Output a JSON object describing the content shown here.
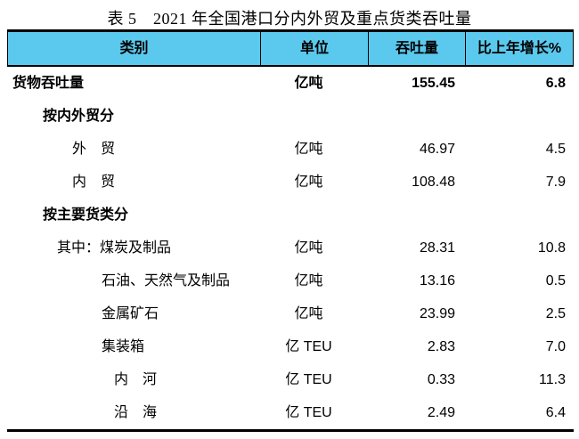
{
  "title": "表 5　2021 年全国港口分内外贸及重点货类吞吐量",
  "table": {
    "header_bg": "#5BC9EE",
    "border_color": "#000000",
    "columns": [
      "类别",
      "单位",
      "吞吐量",
      "比上年增长%"
    ],
    "rows": [
      {
        "label": "货物吞吐量",
        "indent": 0,
        "bold": true,
        "unit": "亿吨",
        "value": "155.45",
        "pct": "6.8"
      },
      {
        "label": "按内外贸分",
        "indent": 1,
        "bold": true,
        "unit": "",
        "value": "",
        "pct": ""
      },
      {
        "label": "外　贸",
        "indent": 2,
        "bold": false,
        "unit": "亿吨",
        "value": "46.97",
        "pct": "4.5"
      },
      {
        "label": "内　贸",
        "indent": 2,
        "bold": false,
        "unit": "亿吨",
        "value": "108.48",
        "pct": "7.9"
      },
      {
        "label": "按主要货类分",
        "indent": 1,
        "bold": true,
        "unit": "",
        "value": "",
        "pct": ""
      },
      {
        "label": "其中：煤炭及制品",
        "indent": 3,
        "bold": false,
        "unit": "亿吨",
        "value": "28.31",
        "pct": "10.8"
      },
      {
        "label": "石油、天然气及制品",
        "indent": 4,
        "bold": false,
        "unit": "亿吨",
        "value": "13.16",
        "pct": "0.5"
      },
      {
        "label": "金属矿石",
        "indent": 4,
        "bold": false,
        "unit": "亿吨",
        "value": "23.99",
        "pct": "2.5"
      },
      {
        "label": "集装箱",
        "indent": 4,
        "bold": false,
        "unit": "亿 TEU",
        "value": "2.83",
        "pct": "7.0"
      },
      {
        "label": "内　河",
        "indent": 5,
        "bold": false,
        "unit": "亿 TEU",
        "value": "0.33",
        "pct": "11.3"
      },
      {
        "label": "沿　海",
        "indent": 5,
        "bold": false,
        "unit": "亿 TEU",
        "value": "2.49",
        "pct": "6.4"
      }
    ]
  }
}
